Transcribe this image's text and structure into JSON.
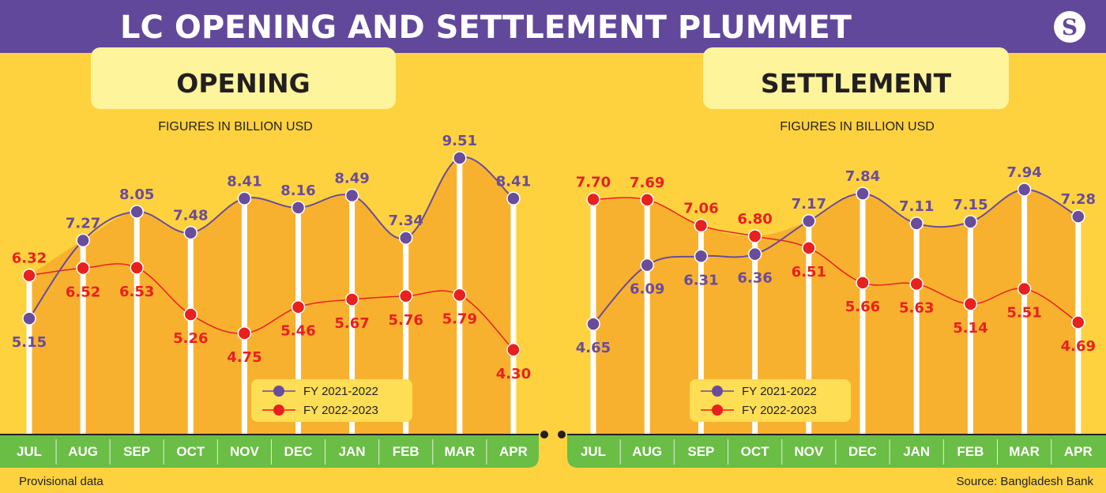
{
  "title": "LC OPENING AND SETTLEMENT PLUMMET",
  "logo_letter": "S",
  "colors": {
    "header": "#62489A",
    "background": "#FDD23E",
    "area": "#F8B12E",
    "purple": "#6A4C9C",
    "red": "#E8201F",
    "axis": "#6ABD45",
    "titlebox": "#FEF49C"
  },
  "footer": {
    "note": "Provisional data",
    "source": "Source: Bangladesh Bank"
  },
  "chart_data": [
    {
      "type": "line",
      "title": "OPENING",
      "subtitle": "FIGURES IN BILLION USD",
      "categories": [
        "JUL",
        "AUG",
        "SEP",
        "OCT",
        "NOV",
        "DEC",
        "JAN",
        "FEB",
        "MAR",
        "APR"
      ],
      "series": [
        {
          "name": "FY 2021-2022",
          "values": [
            5.15,
            7.27,
            8.05,
            7.48,
            8.41,
            8.16,
            8.49,
            7.34,
            9.51,
            8.41
          ]
        },
        {
          "name": "FY 2022-2023",
          "values": [
            6.32,
            6.52,
            6.53,
            5.26,
            4.75,
            5.46,
            5.67,
            5.76,
            5.79,
            4.3
          ]
        }
      ]
    },
    {
      "type": "line",
      "title": "SETTLEMENT",
      "subtitle": "FIGURES IN BILLION USD",
      "categories": [
        "JUL",
        "AUG",
        "SEP",
        "OCT",
        "NOV",
        "DEC",
        "JAN",
        "FEB",
        "MAR",
        "APR"
      ],
      "series": [
        {
          "name": "FY 2021-2022",
          "values": [
            4.65,
            6.09,
            6.31,
            6.36,
            7.17,
            7.84,
            7.11,
            7.15,
            7.94,
            7.28
          ]
        },
        {
          "name": "FY 2022-2023",
          "values": [
            7.7,
            7.69,
            7.06,
            6.8,
            6.51,
            5.66,
            5.63,
            5.14,
            5.51,
            4.69
          ]
        }
      ]
    }
  ]
}
